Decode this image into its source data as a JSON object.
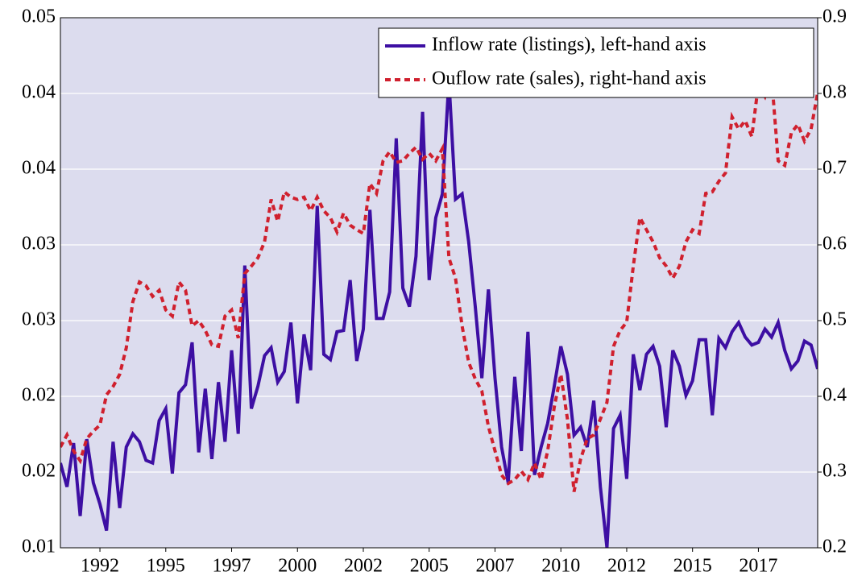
{
  "chart_data": {
    "type": "line",
    "x": [
      1991,
      1991.25,
      1991.5,
      1991.75,
      1992,
      1992.25,
      1992.5,
      1992.75,
      1993,
      1993.25,
      1993.5,
      1993.75,
      1994,
      1994.25,
      1994.5,
      1994.75,
      1995,
      1995.25,
      1995.5,
      1995.75,
      1996,
      1996.25,
      1996.5,
      1996.75,
      1997,
      1997.25,
      1997.5,
      1997.75,
      1998,
      1998.25,
      1998.5,
      1998.75,
      1999,
      1999.25,
      1999.5,
      1999.75,
      2000,
      2000.25,
      2000.5,
      2000.75,
      2001,
      2001.25,
      2001.5,
      2001.75,
      2002,
      2002.25,
      2002.5,
      2002.75,
      2003,
      2003.25,
      2003.5,
      2003.75,
      2004,
      2004.25,
      2004.5,
      2004.75,
      2005,
      2005.25,
      2005.5,
      2005.75,
      2006,
      2006.25,
      2006.5,
      2006.75,
      2007,
      2007.25,
      2007.5,
      2007.75,
      2008,
      2008.25,
      2008.5,
      2008.75,
      2009,
      2009.25,
      2009.5,
      2009.75,
      2010,
      2010.25,
      2010.5,
      2010.75,
      2011,
      2011.25,
      2011.5,
      2011.75,
      2012,
      2012.25,
      2012.5,
      2012.75,
      2013,
      2013.25,
      2013.5,
      2013.75,
      2014,
      2014.25,
      2014.5,
      2014.75,
      2015,
      2015.25,
      2015.5,
      2015.75,
      2016,
      2016.25,
      2016.5,
      2016.75,
      2017,
      2017.25,
      2017.5,
      2017.75,
      2018,
      2018.25,
      2018.5,
      2018.75,
      2019,
      2019.25,
      2019.5,
      2019.75
    ],
    "series": [
      {
        "name": "Inflow rate (listings), left-hand axis",
        "color": "#3d0fa3",
        "style": "solid",
        "axis": "y",
        "values": [
          0.0164,
          0.0146,
          0.0179,
          0.0124,
          0.0182,
          0.0149,
          0.0133,
          0.0113,
          0.018,
          0.013,
          0.0176,
          0.0186,
          0.018,
          0.0166,
          0.0164,
          0.0196,
          0.0205,
          0.0156,
          0.0217,
          0.0223,
          0.0255,
          0.0172,
          0.022,
          0.0167,
          0.0225,
          0.018,
          0.0249,
          0.0186,
          0.0313,
          0.0205,
          0.0222,
          0.0245,
          0.0251,
          0.0225,
          0.0233,
          0.027,
          0.0209,
          0.0261,
          0.0234,
          0.0358,
          0.0246,
          0.0242,
          0.0263,
          0.0264,
          0.0302,
          0.0241,
          0.0265,
          0.0355,
          0.0273,
          0.0273,
          0.0293,
          0.0409,
          0.0296,
          0.0282,
          0.032,
          0.0429,
          0.0302,
          0.0349,
          0.0367,
          0.0453,
          0.0363,
          0.0367,
          0.0331,
          0.0282,
          0.0228,
          0.0295,
          0.0228,
          0.0176,
          0.0149,
          0.0229,
          0.0173,
          0.0263,
          0.0155,
          0.0176,
          0.0194,
          0.0222,
          0.0252,
          0.0231,
          0.0185,
          0.0191,
          0.0176,
          0.0211,
          0.0146,
          0.01,
          0.019,
          0.02,
          0.0152,
          0.0246,
          0.0219,
          0.0246,
          0.0252,
          0.0237,
          0.0191,
          0.0249,
          0.0237,
          0.0215,
          0.0226,
          0.0257,
          0.0257,
          0.02,
          0.0258,
          0.0251,
          0.0263,
          0.027,
          0.0259,
          0.0253,
          0.0255,
          0.0265,
          0.0259,
          0.027,
          0.0249,
          0.0235,
          0.0241,
          0.0256,
          0.0253,
          0.0235
        ]
      },
      {
        "name": "Ouflow rate (sales), right-hand axis",
        "color": "#d0202e",
        "style": "dashed",
        "axis": "y2",
        "values": [
          0.333,
          0.349,
          0.328,
          0.315,
          0.344,
          0.354,
          0.362,
          0.402,
          0.413,
          0.429,
          0.464,
          0.525,
          0.551,
          0.546,
          0.532,
          0.54,
          0.514,
          0.506,
          0.551,
          0.54,
          0.493,
          0.5,
          0.487,
          0.468,
          0.466,
          0.506,
          0.514,
          0.477,
          0.562,
          0.572,
          0.583,
          0.604,
          0.66,
          0.631,
          0.67,
          0.663,
          0.66,
          0.663,
          0.645,
          0.663,
          0.645,
          0.636,
          0.617,
          0.642,
          0.626,
          0.62,
          0.615,
          0.681,
          0.668,
          0.711,
          0.723,
          0.709,
          0.711,
          0.721,
          0.729,
          0.713,
          0.721,
          0.711,
          0.727,
          0.583,
          0.556,
          0.493,
          0.445,
          0.423,
          0.407,
          0.36,
          0.328,
          0.296,
          0.285,
          0.29,
          0.301,
          0.29,
          0.312,
          0.29,
          0.328,
          0.386,
          0.429,
          0.37,
          0.274,
          0.317,
          0.344,
          0.349,
          0.37,
          0.392,
          0.466,
          0.487,
          0.498,
          0.572,
          0.636,
          0.62,
          0.604,
          0.583,
          0.572,
          0.556,
          0.572,
          0.604,
          0.62,
          0.615,
          0.668,
          0.67,
          0.684,
          0.695,
          0.769,
          0.753,
          0.764,
          0.743,
          0.812,
          0.796,
          0.822,
          0.711,
          0.705,
          0.748,
          0.759,
          0.737,
          0.753,
          0.801
        ]
      }
    ],
    "xlim": [
      1991,
      2019.75
    ],
    "xticks": [
      {
        "value": 1992.5,
        "label": "1992"
      },
      1995,
      {
        "value": 1997.5,
        "label": "1997"
      },
      2000,
      {
        "value": 2002.5,
        "label": "2002"
      },
      2005,
      {
        "value": 2007.5,
        "label": "2007"
      },
      2010,
      {
        "value": 2012.5,
        "label": "2012"
      },
      2015,
      {
        "value": 2017.5,
        "label": "2017"
      }
    ],
    "ylim": [
      0.01,
      0.05
    ],
    "yticks": [
      0.01,
      {
        "value": 0.015714,
        "label": "0.02"
      },
      {
        "value": 0.021429,
        "label": "0.02"
      },
      {
        "value": 0.027143,
        "label": "0.03"
      },
      {
        "value": 0.032857,
        "label": "0.03"
      },
      {
        "value": 0.038571,
        "label": "0.04"
      },
      {
        "value": 0.044286,
        "label": "0.04"
      },
      0.05
    ],
    "y2lim": [
      0.2,
      0.9
    ],
    "y2ticks": [
      0.2,
      0.3,
      0.4,
      0.5,
      0.6,
      0.7,
      0.8,
      0.9
    ],
    "grid": true,
    "legend": "upper right"
  }
}
